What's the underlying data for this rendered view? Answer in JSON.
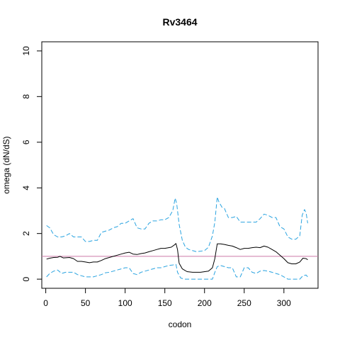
{
  "chart_data": {
    "type": "line",
    "title": "Rv3464",
    "xlabel": "codon",
    "ylabel": "omega (dN/dS)",
    "xlim": [
      -5,
      343
    ],
    "ylim": [
      -0.4,
      10.4
    ],
    "x_ticks": [
      0,
      50,
      100,
      150,
      200,
      250,
      300
    ],
    "y_ticks": [
      0,
      2,
      4,
      6,
      8,
      10
    ],
    "grid": false,
    "reference_line": {
      "y": 1.0,
      "color": "#cc79a7"
    },
    "series": [
      {
        "style": "solid",
        "color": "#000000",
        "points": [
          [
            1,
            0.88
          ],
          [
            5,
            0.92
          ],
          [
            10,
            0.95
          ],
          [
            15,
            0.96
          ],
          [
            18,
            1.0
          ],
          [
            22,
            0.93
          ],
          [
            30,
            0.95
          ],
          [
            35,
            0.9
          ],
          [
            40,
            0.78
          ],
          [
            45,
            0.78
          ],
          [
            50,
            0.75
          ],
          [
            55,
            0.72
          ],
          [
            60,
            0.75
          ],
          [
            65,
            0.75
          ],
          [
            70,
            0.82
          ],
          [
            75,
            0.9
          ],
          [
            80,
            0.95
          ],
          [
            85,
            1.0
          ],
          [
            90,
            1.05
          ],
          [
            95,
            1.1
          ],
          [
            100,
            1.15
          ],
          [
            105,
            1.18
          ],
          [
            110,
            1.1
          ],
          [
            115,
            1.08
          ],
          [
            120,
            1.12
          ],
          [
            125,
            1.15
          ],
          [
            130,
            1.2
          ],
          [
            135,
            1.25
          ],
          [
            140,
            1.3
          ],
          [
            145,
            1.35
          ],
          [
            150,
            1.35
          ],
          [
            155,
            1.38
          ],
          [
            158,
            1.4
          ],
          [
            162,
            1.5
          ],
          [
            164,
            1.56
          ],
          [
            166,
            1.3
          ],
          [
            168,
            0.7
          ],
          [
            172,
            0.45
          ],
          [
            178,
            0.33
          ],
          [
            185,
            0.3
          ],
          [
            195,
            0.3
          ],
          [
            205,
            0.35
          ],
          [
            210,
            0.5
          ],
          [
            213,
            0.9
          ],
          [
            216,
            1.55
          ],
          [
            220,
            1.55
          ],
          [
            225,
            1.52
          ],
          [
            230,
            1.48
          ],
          [
            235,
            1.45
          ],
          [
            240,
            1.38
          ],
          [
            245,
            1.3
          ],
          [
            250,
            1.35
          ],
          [
            255,
            1.35
          ],
          [
            260,
            1.38
          ],
          [
            265,
            1.4
          ],
          [
            270,
            1.38
          ],
          [
            275,
            1.45
          ],
          [
            280,
            1.4
          ],
          [
            285,
            1.3
          ],
          [
            290,
            1.2
          ],
          [
            295,
            1.05
          ],
          [
            300,
            0.9
          ],
          [
            305,
            0.72
          ],
          [
            310,
            0.67
          ],
          [
            315,
            0.67
          ],
          [
            320,
            0.75
          ],
          [
            324,
            0.92
          ],
          [
            328,
            0.9
          ],
          [
            330,
            0.85
          ]
        ]
      },
      {
        "style": "dashed",
        "color": "#29a3e0",
        "points": [
          [
            1,
            2.35
          ],
          [
            5,
            2.25
          ],
          [
            10,
            1.95
          ],
          [
            15,
            1.85
          ],
          [
            20,
            1.85
          ],
          [
            25,
            1.9
          ],
          [
            30,
            2.0
          ],
          [
            35,
            1.85
          ],
          [
            40,
            1.85
          ],
          [
            45,
            1.85
          ],
          [
            50,
            1.65
          ],
          [
            55,
            1.65
          ],
          [
            60,
            1.7
          ],
          [
            65,
            1.7
          ],
          [
            70,
            2.05
          ],
          [
            75,
            2.1
          ],
          [
            80,
            2.15
          ],
          [
            85,
            2.25
          ],
          [
            90,
            2.3
          ],
          [
            95,
            2.45
          ],
          [
            100,
            2.45
          ],
          [
            105,
            2.55
          ],
          [
            110,
            2.65
          ],
          [
            115,
            2.25
          ],
          [
            120,
            2.2
          ],
          [
            125,
            2.2
          ],
          [
            130,
            2.45
          ],
          [
            135,
            2.55
          ],
          [
            140,
            2.55
          ],
          [
            145,
            2.6
          ],
          [
            150,
            2.6
          ],
          [
            155,
            2.7
          ],
          [
            160,
            3.0
          ],
          [
            163,
            3.55
          ],
          [
            165,
            3.3
          ],
          [
            168,
            2.4
          ],
          [
            172,
            1.7
          ],
          [
            176,
            1.4
          ],
          [
            180,
            1.3
          ],
          [
            190,
            1.2
          ],
          [
            200,
            1.25
          ],
          [
            205,
            1.4
          ],
          [
            210,
            1.9
          ],
          [
            213,
            2.5
          ],
          [
            216,
            3.6
          ],
          [
            218,
            3.4
          ],
          [
            222,
            3.15
          ],
          [
            225,
            3.1
          ],
          [
            230,
            2.7
          ],
          [
            235,
            2.7
          ],
          [
            240,
            2.75
          ],
          [
            245,
            2.5
          ],
          [
            250,
            2.5
          ],
          [
            255,
            2.5
          ],
          [
            260,
            2.5
          ],
          [
            265,
            2.5
          ],
          [
            270,
            2.65
          ],
          [
            275,
            2.85
          ],
          [
            280,
            2.8
          ],
          [
            285,
            2.7
          ],
          [
            290,
            2.7
          ],
          [
            295,
            2.3
          ],
          [
            300,
            2.2
          ],
          [
            305,
            1.85
          ],
          [
            310,
            1.75
          ],
          [
            315,
            1.75
          ],
          [
            320,
            1.9
          ],
          [
            323,
            2.8
          ],
          [
            326,
            3.05
          ],
          [
            328,
            2.9
          ],
          [
            330,
            2.45
          ]
        ]
      },
      {
        "style": "dashed",
        "color": "#29a3e0",
        "points": [
          [
            1,
            0.1
          ],
          [
            5,
            0.25
          ],
          [
            10,
            0.35
          ],
          [
            15,
            0.4
          ],
          [
            20,
            0.25
          ],
          [
            25,
            0.3
          ],
          [
            30,
            0.3
          ],
          [
            35,
            0.3
          ],
          [
            40,
            0.2
          ],
          [
            45,
            0.15
          ],
          [
            50,
            0.1
          ],
          [
            55,
            0.1
          ],
          [
            60,
            0.1
          ],
          [
            65,
            0.15
          ],
          [
            70,
            0.2
          ],
          [
            75,
            0.28
          ],
          [
            80,
            0.3
          ],
          [
            85,
            0.35
          ],
          [
            90,
            0.4
          ],
          [
            95,
            0.45
          ],
          [
            100,
            0.5
          ],
          [
            105,
            0.5
          ],
          [
            110,
            0.25
          ],
          [
            115,
            0.2
          ],
          [
            120,
            0.3
          ],
          [
            125,
            0.35
          ],
          [
            130,
            0.4
          ],
          [
            135,
            0.45
          ],
          [
            140,
            0.5
          ],
          [
            145,
            0.5
          ],
          [
            150,
            0.55
          ],
          [
            155,
            0.6
          ],
          [
            160,
            0.62
          ],
          [
            164,
            0.65
          ],
          [
            166,
            0.3
          ],
          [
            170,
            0.05
          ],
          [
            175,
            0.0
          ],
          [
            185,
            0.0
          ],
          [
            200,
            0.0
          ],
          [
            210,
            0.0
          ],
          [
            213,
            0.3
          ],
          [
            216,
            0.55
          ],
          [
            220,
            0.6
          ],
          [
            225,
            0.55
          ],
          [
            230,
            0.5
          ],
          [
            235,
            0.5
          ],
          [
            240,
            0.1
          ],
          [
            245,
            0.1
          ],
          [
            250,
            0.5
          ],
          [
            255,
            0.5
          ],
          [
            260,
            0.3
          ],
          [
            265,
            0.25
          ],
          [
            270,
            0.35
          ],
          [
            275,
            0.38
          ],
          [
            280,
            0.35
          ],
          [
            285,
            0.3
          ],
          [
            290,
            0.25
          ],
          [
            295,
            0.2
          ],
          [
            300,
            0.1
          ],
          [
            305,
            0.0
          ],
          [
            315,
            0.0
          ],
          [
            320,
            0.0
          ],
          [
            324,
            0.15
          ],
          [
            328,
            0.18
          ],
          [
            330,
            0.1
          ]
        ]
      }
    ]
  }
}
